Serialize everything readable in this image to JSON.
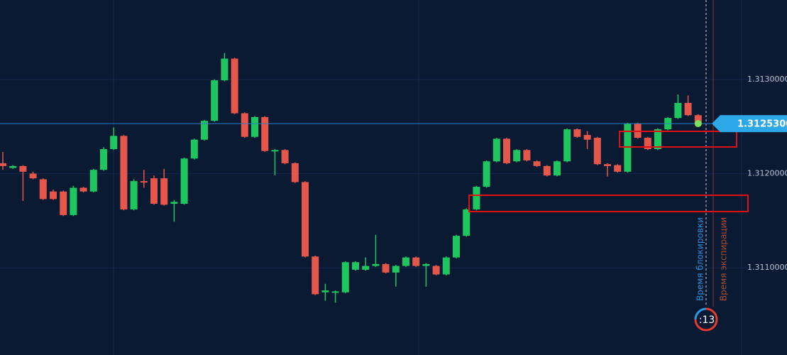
{
  "chart_data": {
    "type": "candlestick",
    "up_color": "#1fc65f",
    "down_color": "#e5574a",
    "open": [
      1.31211,
      1.31206,
      1.31208,
      1.312,
      1.31194,
      1.31181,
      1.31181,
      1.31156,
      1.31185,
      1.31181,
      1.31204,
      1.31226,
      1.3124,
      1.31162,
      1.31192,
      1.31195,
      1.31195,
      1.31168,
      1.31168,
      1.31216,
      1.31236,
      1.31256,
      1.31299,
      1.31322,
      1.31264,
      1.31239,
      1.3126,
      1.31224,
      1.31225,
      1.31211,
      1.31191,
      1.31112,
      1.31074,
      1.31074,
      1.31074,
      1.31098,
      1.31098,
      1.31102,
      1.31104,
      1.31095,
      1.31102,
      1.31111,
      1.31102,
      1.31102,
      1.31093,
      1.31111,
      1.31134,
      1.31162,
      1.31186,
      1.31213,
      1.31237,
      1.31213,
      1.31225,
      1.31213,
      1.31208,
      1.31198,
      1.31213,
      1.31247,
      1.31241,
      1.31238,
      1.3121,
      1.31209,
      1.31202,
      1.31253,
      1.31238,
      1.31226,
      1.31247,
      1.31259,
      1.31275,
      1.31262
    ],
    "high": [
      1.31223,
      1.31209,
      1.31209,
      1.31202,
      1.31195,
      1.31183,
      1.31182,
      1.31187,
      1.31186,
      1.31205,
      1.31228,
      1.31249,
      1.31241,
      1.31194,
      1.31204,
      1.31198,
      1.31205,
      1.31172,
      1.31217,
      1.31237,
      1.31257,
      1.313,
      1.31328,
      1.31323,
      1.31265,
      1.31261,
      1.31261,
      1.31226,
      1.31226,
      1.31212,
      1.31192,
      1.31113,
      1.31083,
      1.31076,
      1.31107,
      1.31107,
      1.31111,
      1.31135,
      1.31105,
      1.31103,
      1.31112,
      1.31112,
      1.31105,
      1.31103,
      1.31112,
      1.31135,
      1.31163,
      1.31187,
      1.31214,
      1.31238,
      1.31238,
      1.31226,
      1.31226,
      1.31214,
      1.31209,
      1.31214,
      1.31248,
      1.31248,
      1.31245,
      1.31239,
      1.31211,
      1.3121,
      1.31254,
      1.31254,
      1.31239,
      1.31248,
      1.3126,
      1.31284,
      1.31283,
      1.31263
    ],
    "low": [
      1.31204,
      1.31205,
      1.31171,
      1.31194,
      1.31172,
      1.31172,
      1.31155,
      1.31155,
      1.3118,
      1.3118,
      1.31203,
      1.31225,
      1.31161,
      1.31161,
      1.31185,
      1.31167,
      1.31166,
      1.31149,
      1.31167,
      1.31215,
      1.31235,
      1.31255,
      1.31298,
      1.31263,
      1.31238,
      1.31238,
      1.31223,
      1.31198,
      1.3121,
      1.3119,
      1.31111,
      1.31071,
      1.31065,
      1.31063,
      1.31073,
      1.31097,
      1.31097,
      1.31101,
      1.31094,
      1.3108,
      1.31101,
      1.31101,
      1.3108,
      1.31092,
      1.31092,
      1.3111,
      1.31133,
      1.31161,
      1.31185,
      1.31212,
      1.3121,
      1.31212,
      1.31213,
      1.31207,
      1.31197,
      1.31197,
      1.31212,
      1.31238,
      1.31226,
      1.31209,
      1.31197,
      1.31201,
      1.31201,
      1.31237,
      1.31225,
      1.31225,
      1.31246,
      1.31258,
      1.31261,
      1.31252
    ],
    "close": [
      1.31208,
      1.31208,
      1.31202,
      1.31195,
      1.31173,
      1.31173,
      1.31156,
      1.31185,
      1.31181,
      1.31204,
      1.31226,
      1.3124,
      1.31162,
      1.31192,
      1.31191,
      1.31168,
      1.31167,
      1.3117,
      1.31216,
      1.31236,
      1.31256,
      1.31299,
      1.31322,
      1.31264,
      1.31239,
      1.3126,
      1.31224,
      1.31225,
      1.31211,
      1.31191,
      1.31112,
      1.31072,
      1.31076,
      1.31075,
      1.31106,
      1.31106,
      1.31102,
      1.31104,
      1.31095,
      1.31102,
      1.31111,
      1.31102,
      1.31104,
      1.31093,
      1.31111,
      1.31134,
      1.31162,
      1.31186,
      1.31213,
      1.31237,
      1.31211,
      1.31225,
      1.31214,
      1.31208,
      1.31198,
      1.31213,
      1.31247,
      1.31239,
      1.31236,
      1.3121,
      1.31208,
      1.31202,
      1.31253,
      1.31238,
      1.31226,
      1.31247,
      1.31259,
      1.31275,
      1.31262,
      1.31253
    ],
    "ylim": [
      1.310075,
      1.313842
    ],
    "yticks": [
      {
        "value": 1.311,
        "label": "1.3110000"
      },
      {
        "value": 1.312,
        "label": "1.3120000"
      },
      {
        "value": 1.313,
        "label": "1.3130000"
      }
    ],
    "current_price": {
      "value": 1.31253,
      "label": "1.3125300"
    },
    "lock_time_label": "Время блокировки",
    "expiry_label": "Время экспирации",
    "timer": ":13"
  }
}
